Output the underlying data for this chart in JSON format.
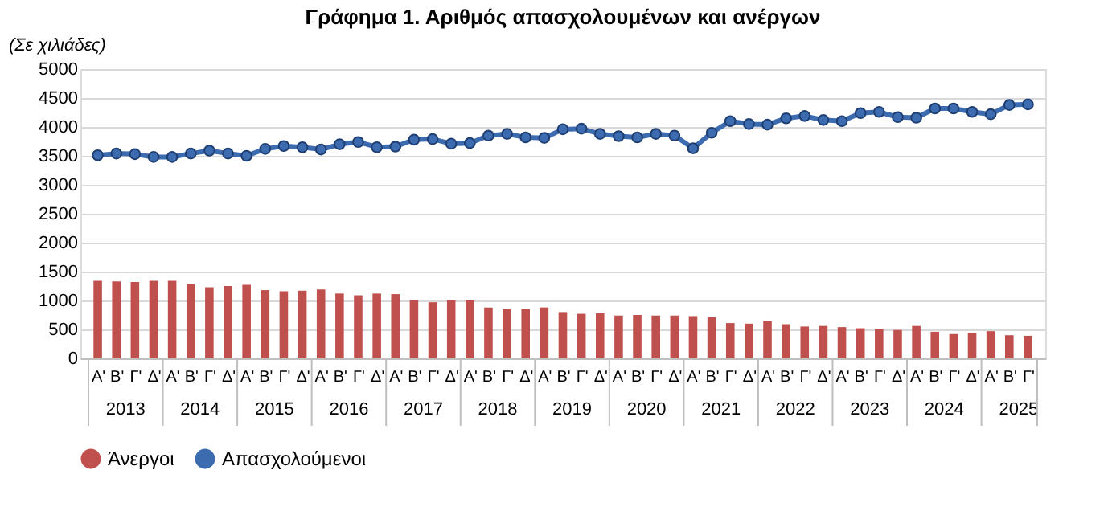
{
  "chart_data": {
    "type": "bar",
    "title": "Γράφημα 1. Αριθμός απασχολουμένων και ανέργων",
    "ylabel": "(Σε χιλιάδες)",
    "categories": [
      "Α'",
      "Β'",
      "Γ'",
      "Δ'",
      "Α'",
      "Β'",
      "Γ'",
      "Δ'",
      "Α'",
      "Β'",
      "Γ'",
      "Δ'",
      "Α'",
      "Β'",
      "Γ'",
      "Δ'",
      "Α'",
      "Β'",
      "Γ'",
      "Δ'",
      "Α'",
      "Β'",
      "Γ'",
      "Δ'",
      "Α'",
      "Β'",
      "Γ'",
      "Δ'",
      "Α'",
      "Β'",
      "Γ'",
      "Δ'",
      "Α'",
      "Β'",
      "Γ'",
      "Δ'",
      "Α'",
      "Β'",
      "Γ'",
      "Δ'",
      "Α'",
      "Β'",
      "Γ'",
      "Δ'",
      "Α'",
      "Β'",
      "Γ'",
      "Δ'",
      "Α'",
      "Β'",
      "Γ'"
    ],
    "annotations": [
      "2013",
      "2014",
      "2015",
      "2016",
      "2017",
      "2018",
      "2019",
      "2020",
      "2021",
      "2022",
      "2023",
      "2024",
      "2025"
    ],
    "series": [
      {
        "name": "Άνεργοι",
        "type": "bar",
        "color": "#c0504d",
        "values": [
          1340,
          1330,
          1320,
          1340,
          1340,
          1280,
          1230,
          1250,
          1270,
          1180,
          1160,
          1170,
          1190,
          1120,
          1090,
          1120,
          1110,
          1000,
          970,
          1000,
          1000,
          880,
          860,
          860,
          880,
          800,
          770,
          780,
          740,
          750,
          740,
          740,
          730,
          710,
          610,
          600,
          640,
          590,
          550,
          560,
          540,
          520,
          510,
          490,
          560,
          460,
          420,
          440,
          470,
          400,
          390
        ]
      },
      {
        "name": "Απασχολούμενοι",
        "type": "line",
        "color": "#3c6bb0",
        "marker": "circle",
        "values": [
          3510,
          3540,
          3530,
          3480,
          3480,
          3540,
          3590,
          3540,
          3500,
          3620,
          3670,
          3650,
          3610,
          3700,
          3740,
          3650,
          3660,
          3780,
          3790,
          3710,
          3720,
          3850,
          3880,
          3820,
          3810,
          3960,
          3970,
          3880,
          3840,
          3820,
          3880,
          3850,
          3630,
          3900,
          4100,
          4050,
          4040,
          4150,
          4190,
          4120,
          4100,
          4240,
          4260,
          4170,
          4160,
          4320,
          4320,
          4260,
          4220,
          4380,
          4390
        ]
      }
    ],
    "ylim": [
      0,
      5000
    ],
    "yticks": [
      0,
      500,
      1000,
      1500,
      2000,
      2500,
      3000,
      3500,
      4000,
      4500,
      5000
    ],
    "grid": "y",
    "legend": "bottom"
  }
}
